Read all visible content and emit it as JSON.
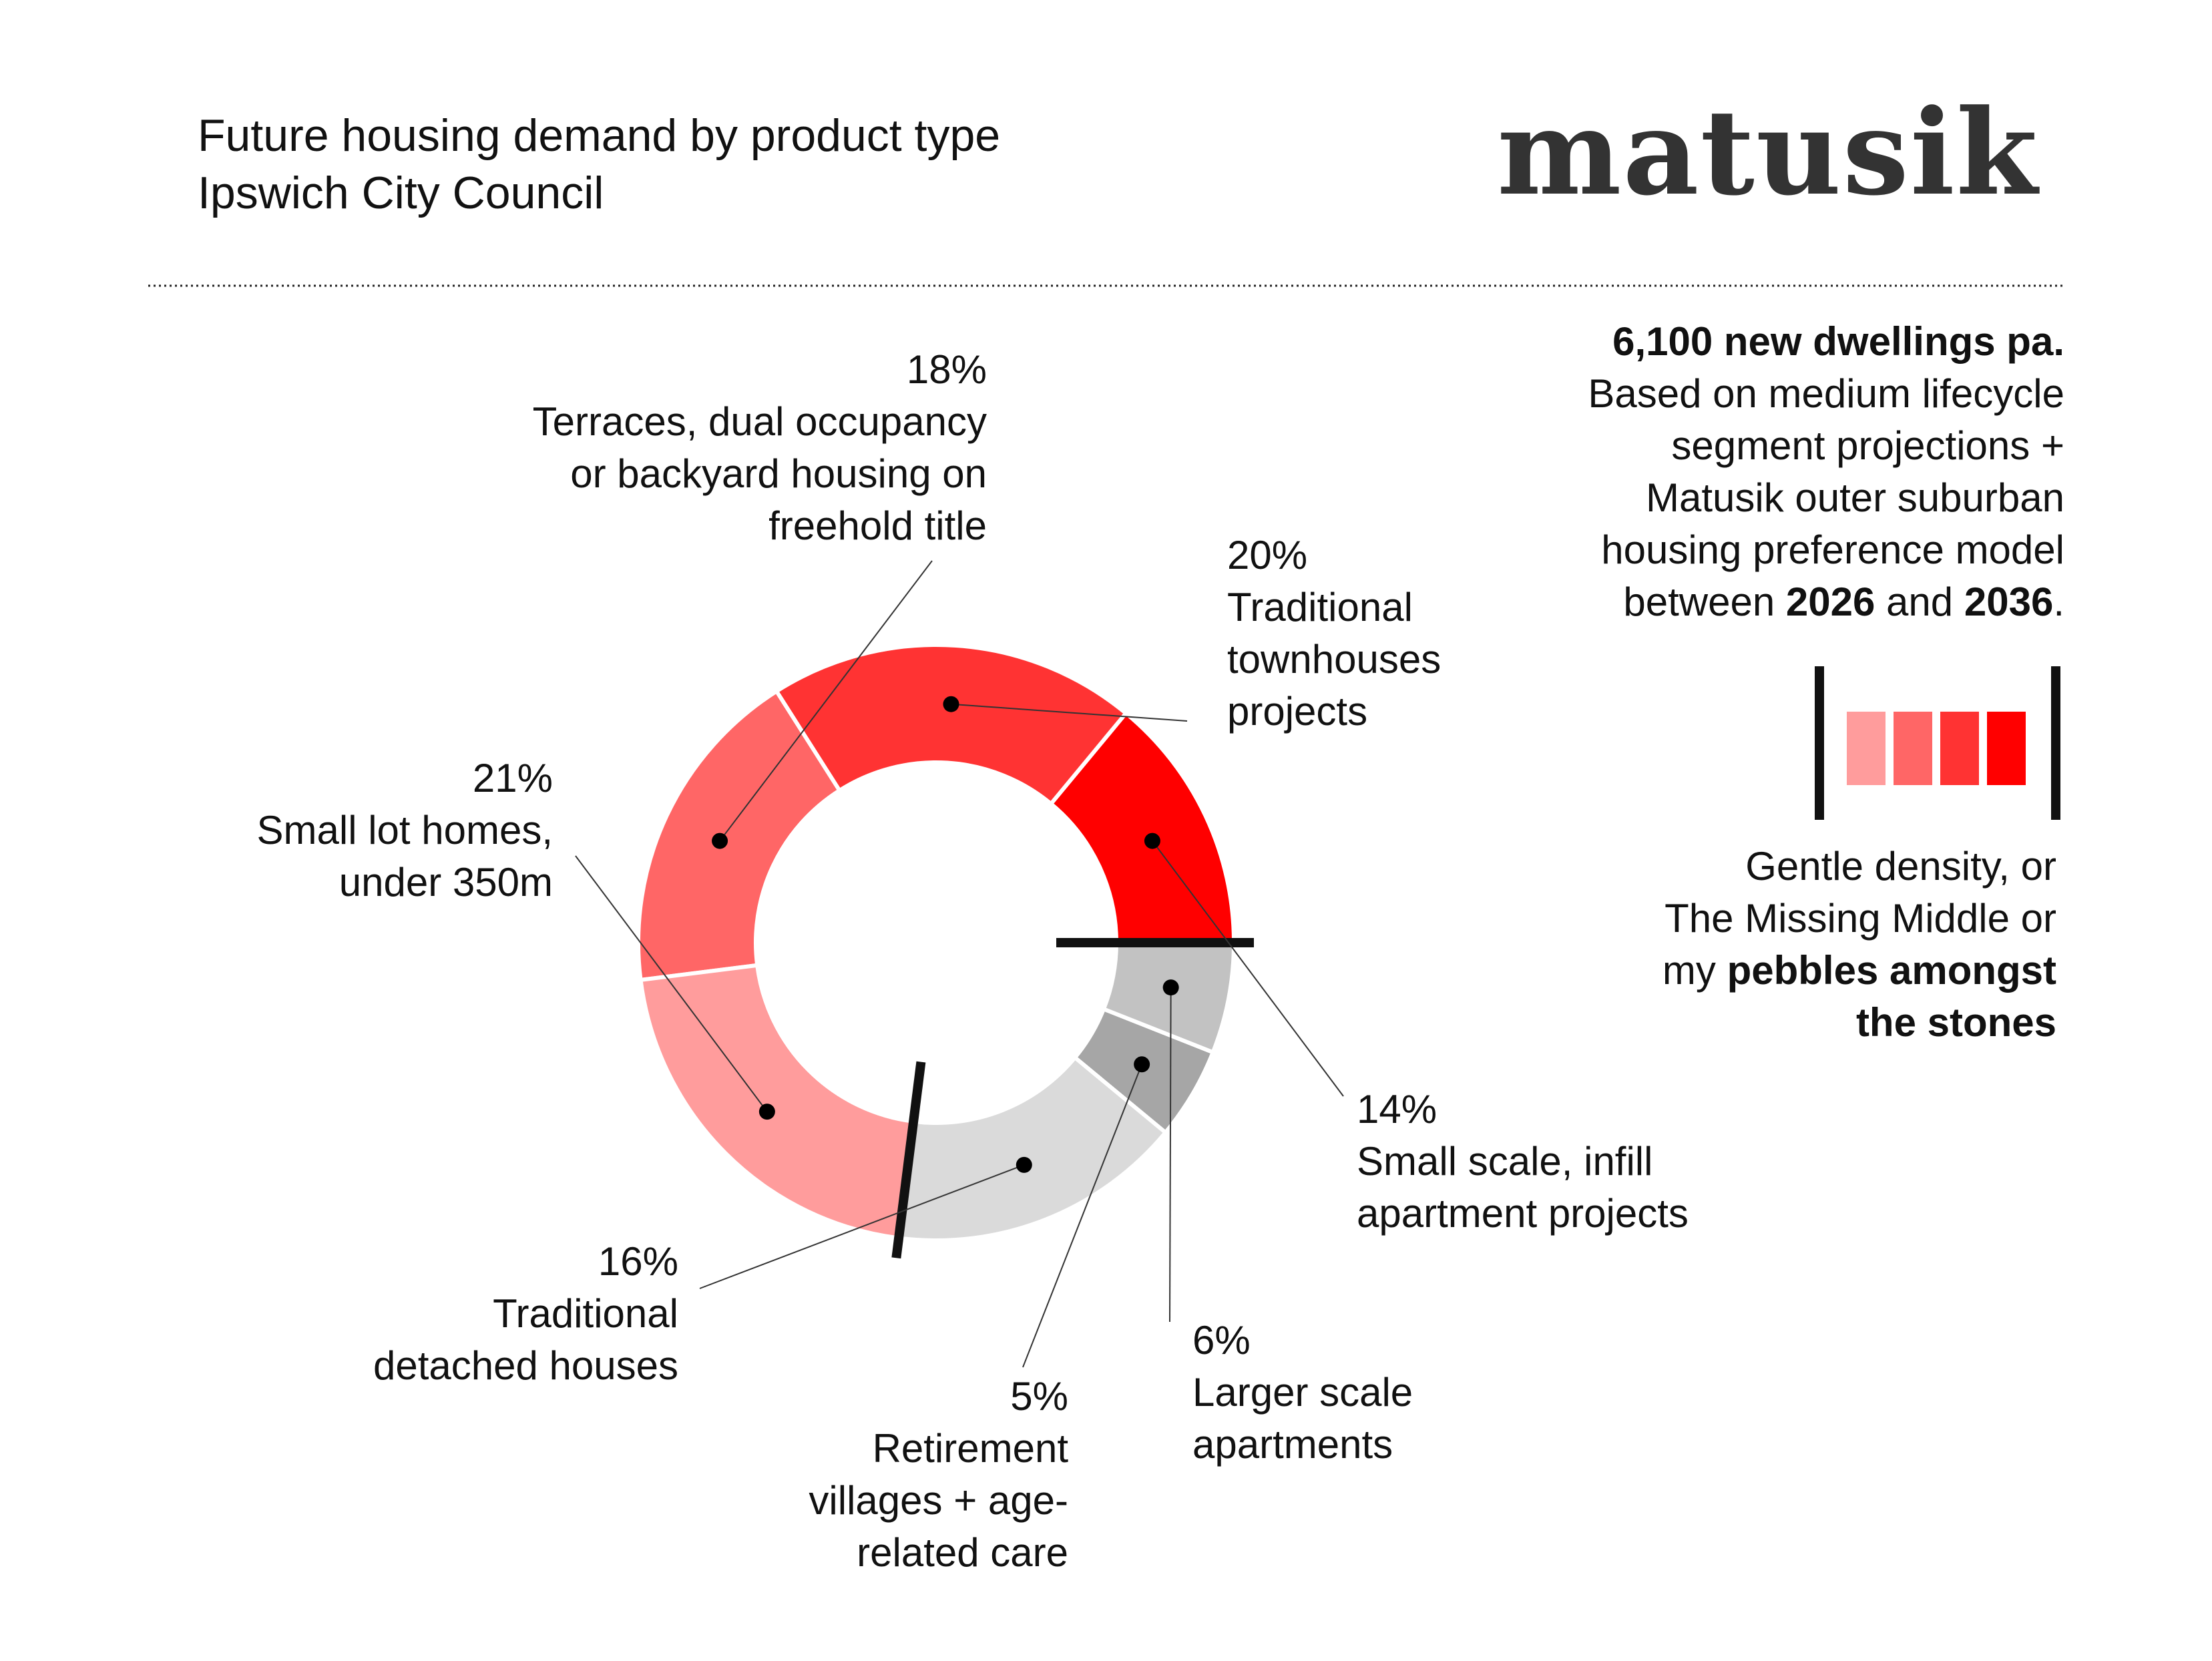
{
  "header": {
    "title": "Future housing demand by product type",
    "subtitle": "Ipswich City Council",
    "logo": "matusik"
  },
  "info": {
    "headline": "6,100 new dwellings pa.",
    "line1": "Based on medium lifecycle",
    "line2": "segment projections +",
    "line3": "Matusik outer suburban",
    "line4": "housing preference model",
    "line5_prefix": "between ",
    "year_from": "2026",
    "and_word": " and ",
    "year_to": "2036",
    "period": "."
  },
  "legend": {
    "swatch_colors": [
      "#FF9C9C",
      "#FF6666",
      "#FF3333",
      "#FF0000"
    ],
    "line1": "Gentle density, or",
    "line2": "The Missing Middle or",
    "line3_prefix": "my ",
    "line3_bold": "pebbles amongst",
    "line4_bold": "the stones"
  },
  "chart_data": {
    "type": "pie",
    "subtype": "donut",
    "unit": "%",
    "slices": [
      {
        "label": "Small scale, infill apartment projects",
        "label_lines": [
          "Small scale, infill",
          "apartment projects"
        ],
        "value": 14,
        "display": "14%",
        "color": "#FF0000"
      },
      {
        "label": "Traditional townhouses projects",
        "label_lines": [
          "Traditional",
          "townhouses",
          "projects"
        ],
        "value": 20,
        "display": "20%",
        "color": "#FF3333"
      },
      {
        "label": "Terraces, dual occupancy or backyard housing on freehold title",
        "label_lines": [
          "Terraces, dual occupancy",
          "or backyard housing on",
          "freehold title"
        ],
        "value": 18,
        "display": "18%",
        "color": "#FF6666"
      },
      {
        "label": "Small lot homes, under 350m",
        "label_lines": [
          "Small lot homes,",
          "under 350m"
        ],
        "value": 21,
        "display": "21%",
        "color": "#FF9C9C"
      },
      {
        "label": "Traditional detached houses",
        "label_lines": [
          "Traditional",
          "detached houses"
        ],
        "value": 16,
        "display": "16%",
        "color": "#DADADA"
      },
      {
        "label": "Retirement villages + age-related care",
        "label_lines": [
          "Retirement",
          "villages + age-",
          "related care"
        ],
        "value": 5,
        "display": "5%",
        "color": "#A6A6A6"
      },
      {
        "label": "Larger scale apartments",
        "label_lines": [
          "Larger scale",
          "apartments"
        ],
        "value": 6,
        "display": "6%",
        "color": "#C2C2C2"
      }
    ]
  }
}
